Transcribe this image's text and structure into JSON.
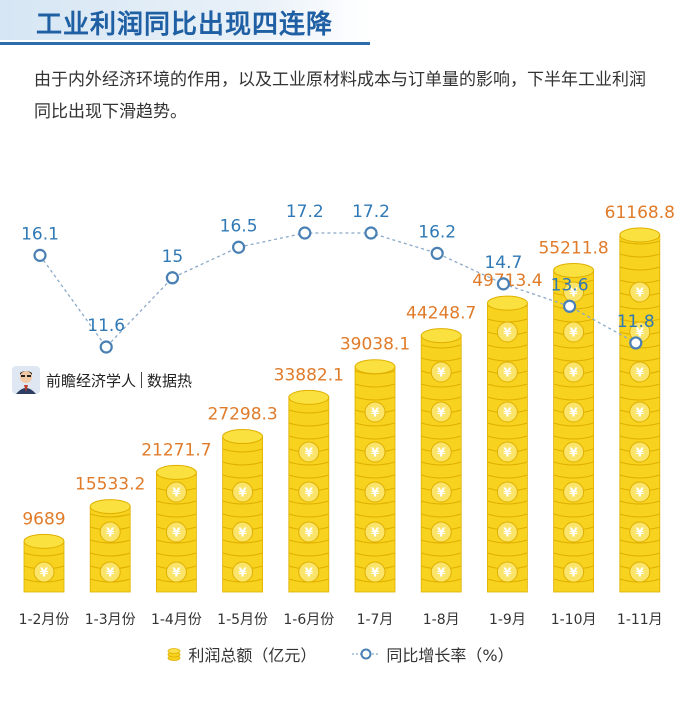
{
  "header": {
    "title": "工业利润同比出现四连降",
    "subtitle": "由于内外经济环境的作用，以及工业原材料成本与订单量的影响，下半年工业利润同比出现下滑趋势。"
  },
  "brand": {
    "name": "前瞻经济学人",
    "tag": "数据热"
  },
  "colors": {
    "coin": "#f7d21e",
    "coin_dark": "#e0b000",
    "profit_label": "#e07b2a",
    "growth_label": "#2f79b6",
    "growth_line": "#8aa9c8"
  },
  "chart_data": {
    "type": "bar",
    "categories": [
      "1-2月份",
      "1-3月份",
      "1-4月份",
      "1-5月份",
      "1-6月份",
      "1-7月",
      "1-8月",
      "1-9月",
      "1-10月",
      "1-11月"
    ],
    "series": [
      {
        "name": "利润总额（亿元）",
        "type": "bar",
        "values": [
          9689,
          15533.2,
          21271.7,
          27298.3,
          33882.1,
          39038.1,
          44248.7,
          49713.4,
          55211.8,
          61168.8
        ],
        "labels": [
          "9689",
          "15533.2",
          "21271.7",
          "27298.3",
          "33882.1",
          "39038.1",
          "44248.7",
          "49713.4",
          "55211.8",
          "61168.8"
        ]
      },
      {
        "name": "同比增长率（%）",
        "type": "line",
        "values": [
          16.1,
          11.6,
          15,
          16.5,
          17.2,
          17.2,
          16.2,
          14.7,
          13.6,
          11.8
        ],
        "labels": [
          "16.1",
          "11.6",
          "15",
          "16.5",
          "17.2",
          "17.2",
          "16.2",
          "14.7",
          "13.6",
          "11.8"
        ]
      }
    ],
    "legend": {
      "bar": "利润总额（亿元）",
      "line": "同比增长率（%）"
    },
    "legend_position": "bottom",
    "grid": false
  }
}
